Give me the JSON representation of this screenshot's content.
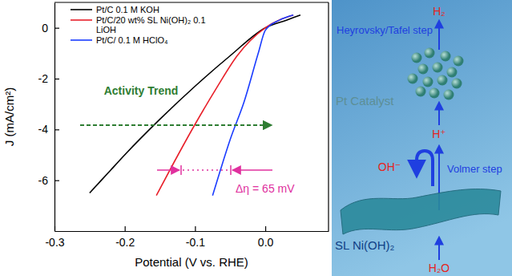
{
  "chart_data": {
    "type": "line",
    "x_label": "Potential (V vs. RHE)",
    "y_label": "J (mA/cm²)",
    "xlim": [
      -0.3,
      0.09
    ],
    "ylim": [
      -8,
      1
    ],
    "xticks": [
      -0.3,
      -0.2,
      -0.1,
      {
        "value": 0,
        "label": "0.0"
      }
    ],
    "yticks": [
      0,
      -2,
      -4,
      -6
    ],
    "legend": "upper left",
    "series": [
      {
        "name": "Pt/C 0.1 M KOH",
        "color": "#000000",
        "x": [
          -0.25,
          -0.22,
          -0.2,
          -0.15,
          -0.1,
          -0.05,
          0,
          0.03,
          0.05
        ],
        "values": [
          -6.5,
          -5.6,
          -5.0,
          -3.6,
          -2.3,
          -1.1,
          0,
          0.3,
          0.5
        ]
      },
      {
        "name": "Pt/C/20 wt% SL Ni(OH)₂ 0.1 LiOH",
        "color": "#e8202a",
        "x": [
          -0.155,
          -0.13,
          -0.1,
          -0.07,
          -0.04,
          0,
          0.04
        ],
        "values": [
          -6.6,
          -5.3,
          -3.8,
          -2.4,
          -1.1,
          0,
          0.5
        ]
      },
      {
        "name": "Pt/C/ 0.1 M HClO₄",
        "color": "#1a3cff",
        "x": [
          -0.075,
          -0.065,
          -0.05,
          -0.03,
          -0.01,
          0,
          0.02,
          0.04
        ],
        "values": [
          -6.6,
          -5.7,
          -4.4,
          -2.9,
          -1.0,
          -0.1,
          0.3,
          0.5
        ]
      }
    ],
    "annotations": [
      "Activity Trend",
      "Δη = 65 mV"
    ]
  },
  "diagram": {
    "product": "H₂",
    "upper_step": "Heyrovsky/Tafel step",
    "catalyst": "Pt Catalyst",
    "intermediate": "H⁺",
    "hydroxide": "OH⁻",
    "lower_step": "Volmer step",
    "support": "SL Ni(OH)₂",
    "reactant": "H₂O"
  }
}
